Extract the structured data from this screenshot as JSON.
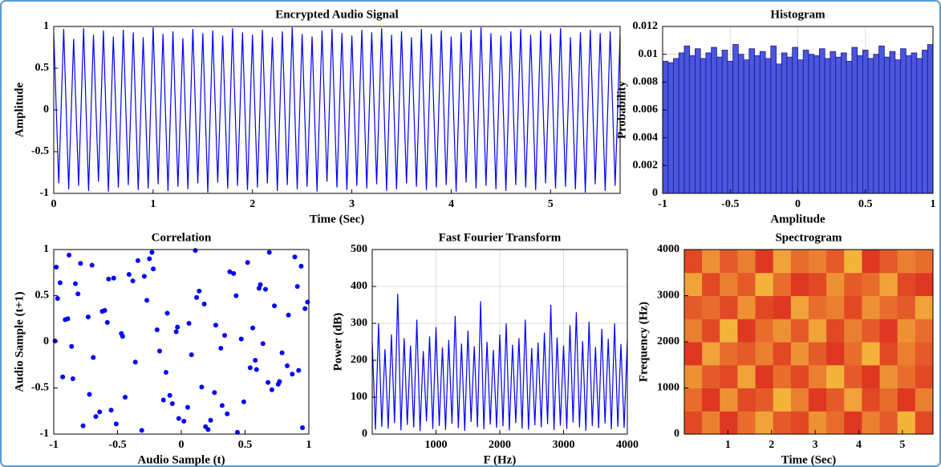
{
  "chart_data": [
    {
      "type": "line",
      "title": "Encrypted Audio Signal",
      "xlabel": "Time (Sec)",
      "ylabel": "Amplitude",
      "color": "#0000ff",
      "xlim": [
        0,
        5.7
      ],
      "ylim": [
        -1,
        1
      ],
      "xticks": [
        0,
        1,
        2,
        3,
        4,
        5
      ],
      "yticks": [
        -1,
        -0.5,
        0,
        0.5,
        1
      ],
      "grid": false,
      "x": [
        0,
        0.05,
        0.1,
        0.15,
        0.2,
        0.25,
        0.3,
        0.35,
        0.4,
        0.45,
        0.5,
        0.55,
        0.6,
        0.65,
        0.7,
        0.75,
        0.8,
        0.85,
        0.9,
        0.95,
        1,
        1.05,
        1.1,
        1.15,
        1.2,
        1.25,
        1.3,
        1.35,
        1.4,
        1.45,
        1.5,
        1.55,
        1.6,
        1.65,
        1.7,
        1.75,
        1.8,
        1.85,
        1.9,
        1.95,
        2,
        2.05,
        2.1,
        2.15,
        2.2,
        2.25,
        2.3,
        2.35,
        2.4,
        2.45,
        2.5,
        2.55,
        2.6,
        2.65,
        2.7,
        2.75,
        2.8,
        2.85,
        2.9,
        2.95,
        3,
        3.05,
        3.1,
        3.15,
        3.2,
        3.25,
        3.3,
        3.35,
        3.4,
        3.45,
        3.5,
        3.55,
        3.6,
        3.65,
        3.7,
        3.75,
        3.8,
        3.85,
        3.9,
        3.95,
        4,
        4.05,
        4.1,
        4.15,
        4.2,
        4.25,
        4.3,
        4.35,
        4.4,
        4.45,
        4.5,
        4.55,
        4.6,
        4.65,
        4.7,
        4.75,
        4.8,
        4.85,
        4.9,
        4.95,
        5,
        5.05,
        5.1,
        5.15,
        5.2,
        5.25,
        5.3,
        5.35,
        5.4,
        5.45,
        5.5,
        5.55,
        5.6,
        5.65,
        5.7
      ],
      "values": [
        0.92,
        -0.88,
        0.97,
        -0.95,
        0.85,
        -0.91,
        0.98,
        -0.97,
        0.9,
        -0.86,
        0.95,
        -0.98,
        0.88,
        -0.93,
        0.96,
        -0.9,
        0.93,
        -0.96,
        0.87,
        -0.94,
        0.99,
        -0.89,
        0.91,
        -0.97,
        0.94,
        -0.92,
        0.86,
        -0.95,
        0.97,
        -0.88,
        0.92,
        -0.99,
        0.95,
        -0.87,
        0.89,
        -0.94,
        0.98,
        -0.91,
        0.93,
        -0.96,
        0.9,
        -0.93,
        0.96,
        -0.88,
        0.87,
        -0.97,
        0.94,
        -0.9,
        0.99,
        -0.95,
        0.91,
        -0.92,
        0.88,
        -0.98,
        0.95,
        -0.86,
        0.97,
        -0.93,
        0.92,
        -0.96,
        0.89,
        -0.91,
        0.96,
        -0.94,
        0.93,
        -0.89,
        0.98,
        -0.97,
        0.9,
        -0.95,
        0.94,
        -0.88,
        0.87,
        -0.92,
        0.97,
        -0.96,
        0.91,
        -0.93,
        0.95,
        -0.9,
        0.88,
        -0.98,
        0.93,
        -0.87,
        0.96,
        -0.94,
        0.99,
        -0.91,
        0.92,
        -0.95,
        0.89,
        -0.97,
        0.94,
        -0.9,
        0.97,
        -0.93,
        0.9,
        -0.96,
        0.95,
        -0.88,
        0.91,
        -0.94,
        0.98,
        -0.92,
        0.87,
        -0.95,
        0.93,
        -0.99,
        0.96,
        -0.89,
        0.92,
        -0.97,
        0.94,
        -0.91,
        0.9
      ]
    },
    {
      "type": "histogram",
      "title": "Histogram",
      "xlabel": "Amplitude",
      "ylabel": "Probability",
      "color": "#4a55e0",
      "xlim": [
        -1,
        1
      ],
      "ylim": [
        0,
        0.012
      ],
      "xticks": [
        -1,
        -0.5,
        0,
        0.5,
        1
      ],
      "yticks": [
        0,
        0.002,
        0.004,
        0.006,
        0.008,
        0.01,
        0.012
      ],
      "grid": true,
      "bins": [
        -1,
        -0.96,
        -0.92,
        -0.88,
        -0.84,
        -0.8,
        -0.76,
        -0.72,
        -0.68,
        -0.64,
        -0.6,
        -0.56,
        -0.52,
        -0.48,
        -0.44,
        -0.4,
        -0.36,
        -0.32,
        -0.28,
        -0.24,
        -0.2,
        -0.16,
        -0.12,
        -0.08,
        -0.04,
        0,
        0.04,
        0.08,
        0.12,
        0.16,
        0.2,
        0.24,
        0.28,
        0.32,
        0.36,
        0.4,
        0.44,
        0.48,
        0.52,
        0.56,
        0.6,
        0.64,
        0.68,
        0.72,
        0.76,
        0.8,
        0.84,
        0.88,
        0.92,
        0.96,
        1
      ],
      "values": [
        0.0095,
        0.0094,
        0.0097,
        0.0101,
        0.0106,
        0.0099,
        0.0104,
        0.0097,
        0.0101,
        0.0105,
        0.0098,
        0.0103,
        0.0095,
        0.0107,
        0.01,
        0.0096,
        0.0104,
        0.0099,
        0.0102,
        0.0097,
        0.0106,
        0.0093,
        0.0101,
        0.0098,
        0.0105,
        0.0096,
        0.0103,
        0.01,
        0.0099,
        0.0104,
        0.0097,
        0.0102,
        0.0098,
        0.0101,
        0.0095,
        0.0105,
        0.0099,
        0.0103,
        0.0097,
        0.01,
        0.0106,
        0.0098,
        0.0102,
        0.0096,
        0.0104,
        0.0099,
        0.0101,
        0.0097,
        0.0103,
        0.0107
      ]
    },
    {
      "type": "scatter",
      "title": "Correlation",
      "xlabel": "Audio Sample (t)",
      "ylabel": "Audio Sample (t+1)",
      "color": "#0000ff",
      "xlim": [
        -1,
        1
      ],
      "ylim": [
        -1,
        1
      ],
      "xticks": [
        -1,
        -0.5,
        0,
        0.5,
        1
      ],
      "yticks": [
        -1,
        -0.5,
        0,
        0.5,
        1
      ],
      "grid": false,
      "x": [
        0.83,
        -0.41,
        0.12,
        -0.77,
        0.56,
        -0.09,
        0.94,
        -0.62,
        0.31,
        -0.95,
        0.68,
        -0.23,
        0.05,
        -0.58,
        0.87,
        -0.34,
        0.21,
        -0.81,
        0.47,
        -0.14,
        0.73,
        -0.69,
        0.38,
        -0.02,
        0.91,
        -0.47,
        0.16,
        -0.88,
        0.59,
        -0.27,
        0.02,
        -0.73,
        0.79,
        -0.53,
        0.26,
        -0.98,
        0.44,
        -0.19,
        0.66,
        -0.85,
        0.11,
        -0.36,
        0.97,
        -0.64,
        0.34,
        -0.07,
        0.52,
        -0.91,
        0.71,
        -0.29,
        -0.51,
        0.18,
        -0.86,
        0.62,
        -0.12,
        0.89,
        -0.44,
        0.27,
        -0.67,
        0.43,
        -0.99,
        0.76,
        -0.22,
        0.08,
        -0.6,
        0.95,
        -0.38,
        0.54,
        -0.79,
        0.32,
        -0.04,
        0.69,
        -0.93,
        0.14,
        -0.55,
        0.84,
        -0.17,
        0.41,
        -0.72,
        0.99,
        -0.31,
        0.06,
        -0.83,
        0.58,
        -0.25,
        0.77,
        -0.46,
        0.23,
        -0.97,
        0.49,
        -0.11,
        0.64,
        -0.7,
        0.36,
        -0.03,
        0.92,
        -0.57,
        0.19,
        -0.89,
        0.61
      ],
      "values": [
        -0.26,
        0.73,
        0.48,
        -0.91,
        0.15,
        -0.58,
        0.82,
        0.33,
        -0.07,
        0.64,
        -0.44,
        0.97,
        -0.71,
        0.21,
        -0.35,
        0.88,
        -0.95,
        0.52,
        0.03,
        -0.63,
        0.39,
        -0.17,
        0.76,
        -0.83,
        0.6,
        0.09,
        -0.49,
        0.94,
        -0.3,
        0.45,
        -0.86,
        0.27,
        -0.12,
        0.69,
        -0.55,
        0.81,
        -0.98,
        0.13,
        0.57,
        -0.4,
        0.99,
        -0.22,
        0.36,
        -0.76,
        0.07,
        -0.67,
        0.86,
        0.24,
        -0.52,
        0.71,
        -0.89,
        0.41,
        -0.05,
        0.62,
        -0.33,
        0.92,
        -0.6,
        0.18,
        -0.81,
        0.5,
        0.01,
        -0.46,
        0.79,
        -0.14,
        0.34,
        -0.93,
        0.66,
        -0.28,
        0.85,
        -0.69,
        0.11,
        0.97,
        -0.38,
        0.55,
        -0.74,
        0.29,
        -0.1,
        0.74,
        -0.57,
        0.43,
        -0.96,
        0.2,
        0.63,
        -0.2,
        0.9,
        -0.43,
        0.06,
        -0.85,
        0.47,
        -0.65,
        0.31,
        -0.02,
        0.83,
        -0.78,
        0.16,
        -0.31,
        0.68,
        -0.92,
        0.25,
        0.58
      ]
    },
    {
      "type": "line",
      "title": "Fast Fourier Transform",
      "xlabel": "F (Hz)",
      "ylabel": "Power (dB)",
      "color": "#0000ff",
      "xlim": [
        0,
        4000
      ],
      "ylim": [
        0,
        500
      ],
      "xticks": [
        1000,
        2000,
        3000,
        4000
      ],
      "yticks": [
        0,
        100,
        200,
        300,
        400,
        500
      ],
      "grid": true,
      "x": [
        0,
        50,
        100,
        150,
        200,
        250,
        300,
        350,
        400,
        450,
        500,
        550,
        600,
        650,
        700,
        750,
        800,
        850,
        900,
        950,
        1000,
        1050,
        1100,
        1150,
        1200,
        1250,
        1300,
        1350,
        1400,
        1450,
        1500,
        1550,
        1600,
        1650,
        1700,
        1750,
        1800,
        1850,
        1900,
        1950,
        2000,
        2050,
        2100,
        2150,
        2200,
        2250,
        2300,
        2350,
        2400,
        2450,
        2500,
        2550,
        2600,
        2650,
        2700,
        2750,
        2800,
        2850,
        2900,
        2950,
        3000,
        3050,
        3100,
        3150,
        3200,
        3250,
        3300,
        3350,
        3400,
        3450,
        3500,
        3550,
        3600,
        3650,
        3700,
        3750,
        3800,
        3850,
        3900,
        3950,
        4000
      ],
      "values": [
        250,
        12,
        300,
        20,
        230,
        15,
        270,
        30,
        380,
        10,
        260,
        25,
        240,
        18,
        310,
        8,
        225,
        35,
        265,
        14,
        290,
        22,
        235,
        11,
        255,
        28,
        320,
        16,
        245,
        9,
        280,
        33,
        238,
        19,
        360,
        13,
        250,
        26,
        228,
        17,
        270,
        21,
        300,
        10,
        242,
        30,
        260,
        15,
        310,
        12,
        233,
        24,
        248,
        19,
        275,
        27,
        350,
        11,
        262,
        23,
        240,
        14,
        295,
        31,
        330,
        18,
        252,
        9,
        305,
        22,
        236,
        16,
        285,
        29,
        258,
        13,
        300,
        20,
        244,
        17,
        255
      ]
    },
    {
      "type": "heatmap",
      "title": "Spectrogram",
      "xlabel": "Time (Sec)",
      "ylabel": "Frequency (Hz)",
      "colors": [
        "#d8141a",
        "#f7c640"
      ],
      "xlim": [
        0,
        5.7
      ],
      "ylim": [
        0,
        4000
      ],
      "xticks": [
        1,
        2,
        3,
        4,
        5
      ],
      "yticks": [
        0,
        1000,
        2000,
        3000,
        4000
      ],
      "grid": false,
      "z": [
        [
          0.3,
          0.6,
          0.2,
          0.5,
          0.8,
          0.4,
          0.3,
          0.7,
          0.5,
          0.2,
          0.6,
          0.4,
          0.9,
          0.3
        ],
        [
          0.5,
          0.2,
          0.7,
          0.3,
          0.4,
          0.9,
          0.6,
          0.2,
          0.4,
          0.8,
          0.3,
          0.5,
          0.2,
          0.6
        ],
        [
          0.7,
          0.4,
          0.3,
          0.8,
          0.2,
          0.5,
          0.3,
          0.6,
          0.9,
          0.4,
          0.2,
          0.7,
          0.5,
          0.3
        ],
        [
          0.2,
          0.8,
          0.5,
          0.4,
          0.6,
          0.3,
          0.7,
          0.4,
          0.2,
          0.5,
          0.9,
          0.3,
          0.6,
          0.4
        ],
        [
          0.6,
          0.3,
          0.9,
          0.2,
          0.5,
          0.7,
          0.4,
          0.8,
          0.3,
          0.6,
          0.4,
          0.2,
          0.7,
          0.5
        ],
        [
          0.4,
          0.5,
          0.3,
          0.7,
          0.3,
          0.2,
          0.8,
          0.5,
          0.6,
          0.3,
          0.7,
          0.5,
          0.4,
          0.8
        ],
        [
          0.8,
          0.3,
          0.6,
          0.4,
          0.9,
          0.5,
          0.2,
          0.3,
          0.7,
          0.4,
          0.5,
          0.8,
          0.3,
          0.2
        ],
        [
          0.3,
          0.7,
          0.4,
          0.6,
          0.2,
          0.8,
          0.5,
          0.6,
          0.4,
          0.9,
          0.2,
          0.4,
          0.6,
          0.5
        ]
      ]
    }
  ]
}
